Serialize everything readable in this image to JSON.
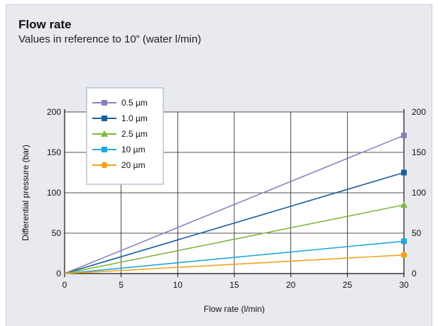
{
  "header": {
    "title": "Flow rate",
    "subtitle": "Values in reference to 10” (water l/min)"
  },
  "chart_data": {
    "type": "line",
    "title": "Flow rate",
    "subtitle": "Values in reference to 10” (water l/min)",
    "xlabel": "Flow rate (l/min)",
    "ylabel": "Differential pressure (bar)",
    "xlim": [
      0,
      30
    ],
    "ylim": [
      0,
      200
    ],
    "xticks": [
      0,
      5,
      10,
      15,
      20,
      25,
      30
    ],
    "yticks": [
      0,
      50,
      100,
      150,
      200
    ],
    "right_axis_ticks": [
      0,
      50,
      100,
      150,
      200
    ],
    "grid": true,
    "legend_position": "top-left",
    "series": [
      {
        "name": "0.5 µm",
        "color": "#8e7fba",
        "marker": "square",
        "x": [
          0,
          30
        ],
        "y": [
          0,
          171
        ]
      },
      {
        "name": "1.0 µm",
        "color": "#1a5fa0",
        "marker": "square",
        "x": [
          0,
          30
        ],
        "y": [
          0,
          125
        ]
      },
      {
        "name": "2.5 µm",
        "color": "#7db93c",
        "marker": "triangle",
        "x": [
          0,
          30
        ],
        "y": [
          0,
          85
        ]
      },
      {
        "name": "10 µm",
        "color": "#22a6de",
        "marker": "square",
        "x": [
          0,
          30
        ],
        "y": [
          0,
          40
        ]
      },
      {
        "name": "20 µm",
        "color": "#f2a31b",
        "marker": "circle",
        "x": [
          0,
          30
        ],
        "y": [
          0,
          23
        ]
      }
    ]
  }
}
